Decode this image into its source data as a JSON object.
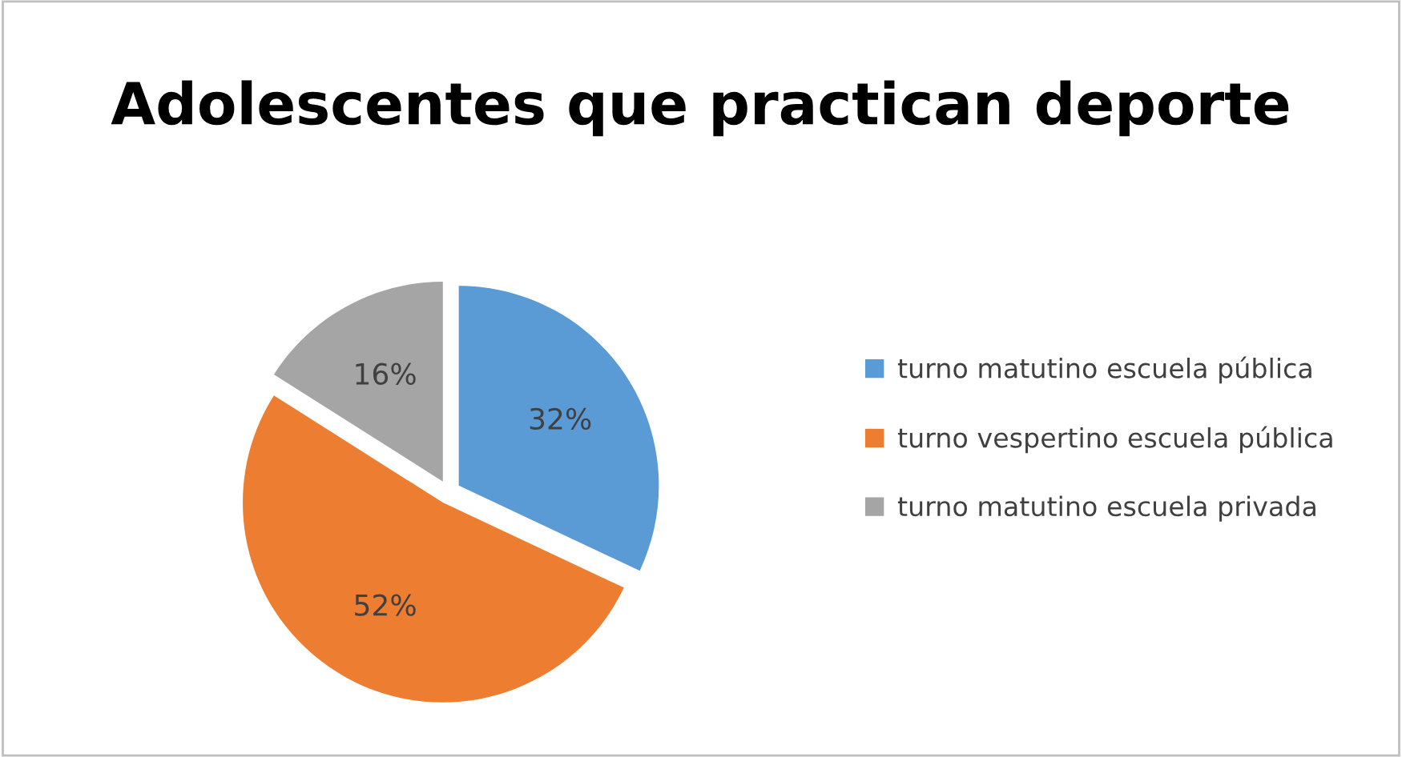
{
  "chart_data": {
    "type": "pie",
    "title": "Adolescentes que practican deporte",
    "categories": [
      "turno matutino escuela pública",
      "turno vespertino escuela pública",
      "turno matutino escuela privada"
    ],
    "values": [
      32,
      52,
      16
    ],
    "colors": [
      "#5b9bd5",
      "#ed7d31",
      "#a5a5a5"
    ],
    "value_labels": [
      "32%",
      "52%",
      "16%"
    ],
    "legend": "right"
  }
}
